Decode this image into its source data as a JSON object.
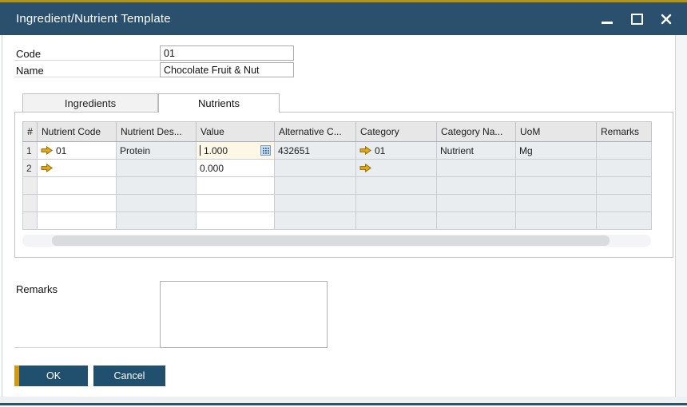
{
  "window": {
    "title": "Ingredient/Nutrient Template",
    "controls": {
      "minimize": "minimize",
      "maximize": "maximize",
      "close": "close"
    }
  },
  "header_fields": {
    "code_label": "Code",
    "code_value": "01",
    "name_label": "Name",
    "name_value": "Chocolate Fruit & Nut"
  },
  "tabs": [
    {
      "label": "Ingredients",
      "active": false
    },
    {
      "label": "Nutrients",
      "active": true
    }
  ],
  "table": {
    "columns": [
      "#",
      "Nutrient Code",
      "Nutrient Des...",
      "Value",
      "Alternative C...",
      "Category",
      "Category Na...",
      "UoM",
      "Remarks"
    ],
    "column_keys": [
      "num",
      "nutrient_code",
      "nutrient_desc",
      "value",
      "alternative",
      "category",
      "category_name",
      "uom",
      "remarks"
    ],
    "white_columns": [
      "nutrient_code",
      "value"
    ],
    "rows": [
      {
        "num": "1",
        "nutrient_code": "01",
        "nutrient_code_arrow": true,
        "nutrient_desc": "Protein",
        "value": "1.000",
        "value_active": true,
        "alternative": "432651",
        "category": "01",
        "category_arrow": true,
        "category_name": "Nutrient",
        "uom": "Mg",
        "remarks": ""
      },
      {
        "num": "2",
        "nutrient_code": "",
        "nutrient_code_arrow": true,
        "nutrient_desc": "",
        "value": "0.000",
        "value_active": false,
        "alternative": "",
        "category": "",
        "category_arrow": true,
        "category_name": "",
        "uom": "",
        "remarks": ""
      },
      {
        "num": "",
        "nutrient_code": "",
        "nutrient_code_arrow": false,
        "nutrient_desc": "",
        "value": "",
        "value_active": false,
        "alternative": "",
        "category": "",
        "category_arrow": false,
        "category_name": "",
        "uom": "",
        "remarks": ""
      },
      {
        "num": "",
        "nutrient_code": "",
        "nutrient_code_arrow": false,
        "nutrient_desc": "",
        "value": "",
        "value_active": false,
        "alternative": "",
        "category": "",
        "category_arrow": false,
        "category_name": "",
        "uom": "",
        "remarks": ""
      },
      {
        "num": "",
        "nutrient_code": "",
        "nutrient_code_arrow": false,
        "nutrient_desc": "",
        "value": "",
        "value_active": false,
        "alternative": "",
        "category": "",
        "category_arrow": false,
        "category_name": "",
        "uom": "",
        "remarks": ""
      }
    ]
  },
  "remarks": {
    "label": "Remarks",
    "value": ""
  },
  "buttons": {
    "ok": "OK",
    "cancel": "Cancel"
  },
  "icons": {
    "link_arrow": "orange-link-arrow",
    "value_editor": "grid-expand-button",
    "minimize": "underscore-dash",
    "maximize": "hollow-square",
    "close": "x-cross"
  },
  "colors": {
    "titlebar": "#2b506e",
    "gold_accent": "#b5930e",
    "button_gold_bar": "#d29a12",
    "active_cell_bg": "#fdf8e6",
    "gray_cell_bg": "#e9edf0",
    "header_cell_bg": "#e7e7e7",
    "link_arrow": "#e7a812"
  }
}
